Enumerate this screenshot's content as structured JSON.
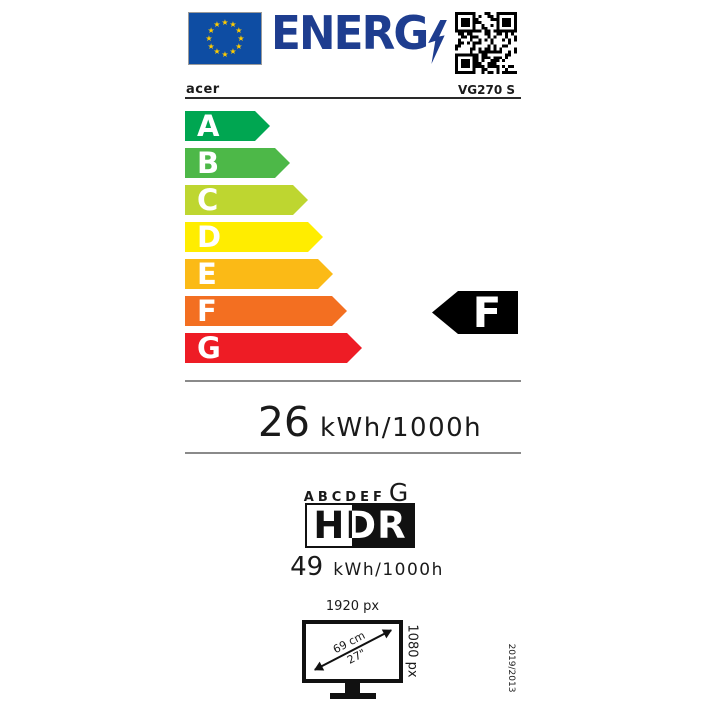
{
  "header": {
    "logo_text": "ENERG",
    "brand": "acer",
    "model": "VG270 S"
  },
  "scale": {
    "grades": [
      {
        "letter": "A",
        "color": "#00a651"
      },
      {
        "letter": "B",
        "color": "#4db848"
      },
      {
        "letter": "C",
        "color": "#bed630"
      },
      {
        "letter": "D",
        "color": "#ffed00"
      },
      {
        "letter": "E",
        "color": "#fbba16"
      },
      {
        "letter": "F",
        "color": "#f36f21"
      },
      {
        "letter": "G",
        "color": "#ee1c25"
      }
    ],
    "rating": "F"
  },
  "energy": {
    "value": "26",
    "unit": "kWh/1000h"
  },
  "hdr": {
    "scale_letters": [
      "A",
      "B",
      "C",
      "D",
      "E",
      "F"
    ],
    "highlight": "G",
    "logo": "HDR",
    "value": "49",
    "unit": "kWh/1000h"
  },
  "screen": {
    "width_px": "1920 px",
    "height_px": "1080 px",
    "diagonal_cm": "69 cm",
    "diagonal_in": "27\""
  },
  "regulation": "2019/2013",
  "colors": {
    "flag_blue": "#0e4da3",
    "logo_blue": "#1e3d8f",
    "star_yellow": "#ffcc00",
    "indicator_black": "#000000"
  }
}
